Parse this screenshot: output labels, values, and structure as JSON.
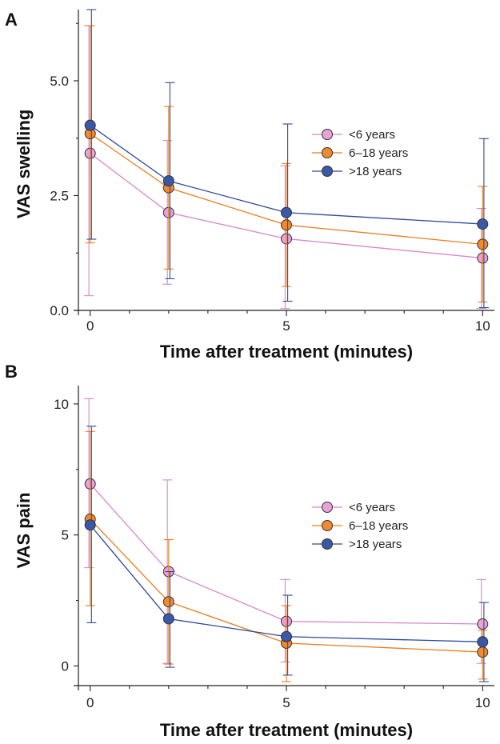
{
  "series_styles": [
    {
      "name": "<6 years",
      "color": "#e8a2d8",
      "line": "#d788cc"
    },
    {
      "name": "6–18 years",
      "color": "#f08a2c",
      "line": "#ea7e1f"
    },
    {
      "name": ">18 years",
      "color": "#3a58a8",
      "line": "#2d4a9a"
    }
  ],
  "chart_data": [
    {
      "panel": "A",
      "type": "line",
      "xlabel": "Time after treatment (minutes)",
      "ylabel": "VAS swelling",
      "xlim": [
        -0.3,
        10.3
      ],
      "ylim": [
        0,
        6.55
      ],
      "x_ticks": [
        0,
        5,
        10
      ],
      "x_tick_labels": [
        "0",
        "5",
        "10"
      ],
      "x_minor_ticks": [
        1,
        2,
        3,
        4,
        6,
        7,
        8,
        9
      ],
      "y_ticks": [
        0,
        2.5,
        5
      ],
      "y_tick_labels": [
        "0.0",
        "2.5",
        "5.0"
      ],
      "legend_position": "top-right",
      "x": [
        0,
        2,
        5,
        10
      ],
      "series": [
        {
          "name": "<6 years",
          "values": [
            3.42,
            2.13,
            1.56,
            1.14
          ],
          "err_low": [
            0.32,
            0.57,
            0.04,
            0.04
          ],
          "err_high": [
            6.2,
            3.7,
            3.15,
            2.22
          ]
        },
        {
          "name": "6–18 years",
          "values": [
            3.85,
            2.67,
            1.86,
            1.44
          ],
          "err_low": [
            1.47,
            0.9,
            0.52,
            0.18
          ],
          "err_high": [
            6.2,
            4.44,
            3.2,
            2.7
          ]
        },
        {
          "name": ">18 years",
          "values": [
            4.03,
            2.82,
            2.13,
            1.88
          ],
          "err_low": [
            1.55,
            0.69,
            0.2,
            0.06
          ],
          "err_high": [
            6.55,
            4.96,
            4.06,
            3.74
          ]
        }
      ]
    },
    {
      "panel": "B",
      "type": "line",
      "xlabel": "Time after treatment (minutes)",
      "ylabel": "VAS pain",
      "xlim": [
        -0.3,
        10.3
      ],
      "ylim": [
        -0.75,
        10.7
      ],
      "x_ticks": [
        0,
        5,
        10
      ],
      "x_tick_labels": [
        "0",
        "5",
        "10"
      ],
      "x_minor_ticks": [
        1,
        2,
        3,
        4,
        6,
        7,
        8,
        9
      ],
      "y_ticks": [
        0,
        5,
        10
      ],
      "y_tick_labels": [
        "0",
        "5",
        "10"
      ],
      "legend_position": "right",
      "x": [
        0,
        2,
        5,
        10
      ],
      "series": [
        {
          "name": "<6 years",
          "values": [
            6.95,
            3.6,
            1.7,
            1.6
          ],
          "err_low": [
            3.75,
            0.1,
            0.15,
            0.1
          ],
          "err_high": [
            10.2,
            7.1,
            3.3,
            3.3
          ]
        },
        {
          "name": "6–18 years",
          "values": [
            5.6,
            2.45,
            0.87,
            0.53
          ],
          "err_low": [
            2.3,
            0.07,
            -0.6,
            -0.5
          ],
          "err_high": [
            8.95,
            4.82,
            2.3,
            1.36
          ]
        },
        {
          "name": ">18 years",
          "values": [
            5.38,
            1.8,
            1.12,
            0.92
          ],
          "err_low": [
            1.65,
            -0.05,
            -0.35,
            -0.6
          ],
          "err_high": [
            9.15,
            3.6,
            2.7,
            2.42
          ]
        }
      ]
    }
  ]
}
